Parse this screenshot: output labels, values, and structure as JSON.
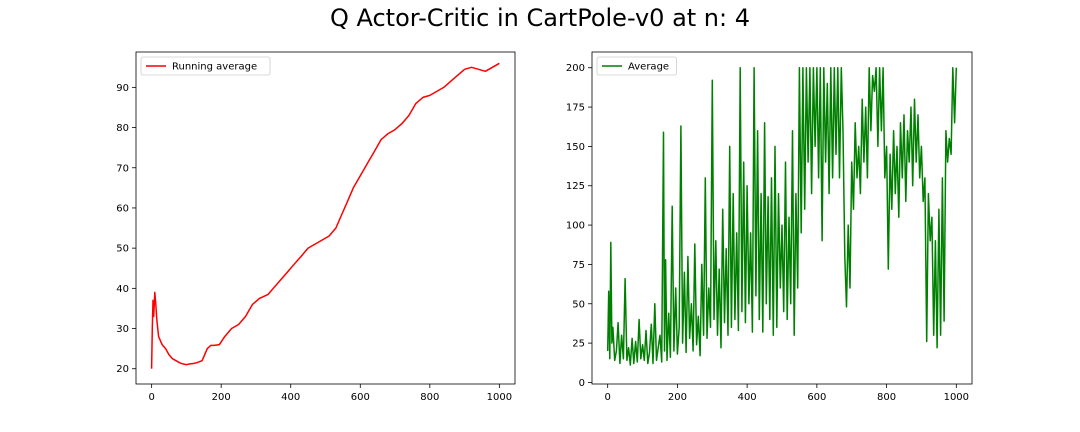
{
  "figure": {
    "title": "Q Actor-Critic in CartPole-v0 at n: 4"
  },
  "chart_data": [
    {
      "type": "line",
      "title": "",
      "xlabel": "",
      "ylabel": "",
      "xlim": [
        -45,
        1045
      ],
      "ylim": [
        16.2,
        98.8
      ],
      "xticks": [
        0,
        200,
        400,
        600,
        800,
        1000
      ],
      "yticks": [
        20,
        30,
        40,
        50,
        60,
        70,
        80,
        90
      ],
      "grid": false,
      "legend": "upper-left",
      "series": [
        {
          "name": "Running average",
          "color": "#ff0000",
          "points": [
            [
              0,
              20
            ],
            [
              2,
              30
            ],
            [
              4,
              37
            ],
            [
              6,
              33
            ],
            [
              9,
              39
            ],
            [
              12,
              36
            ],
            [
              15,
              32
            ],
            [
              20,
              28
            ],
            [
              30,
              26
            ],
            [
              40,
              25
            ],
            [
              50,
              23.5
            ],
            [
              60,
              22.5
            ],
            [
              70,
              22
            ],
            [
              80,
              21.5
            ],
            [
              90,
              21.2
            ],
            [
              100,
              21
            ],
            [
              110,
              21.2
            ],
            [
              120,
              21.3
            ],
            [
              130,
              21.5
            ],
            [
              145,
              22
            ],
            [
              160,
              25
            ],
            [
              170,
              25.8
            ],
            [
              180,
              25.8
            ],
            [
              195,
              26
            ],
            [
              210,
              28
            ],
            [
              230,
              30
            ],
            [
              250,
              31
            ],
            [
              270,
              33
            ],
            [
              290,
              36
            ],
            [
              310,
              37.5
            ],
            [
              335,
              38.5
            ],
            [
              350,
              40
            ],
            [
              370,
              42
            ],
            [
              390,
              44
            ],
            [
              410,
              46
            ],
            [
              430,
              48
            ],
            [
              450,
              50
            ],
            [
              470,
              51
            ],
            [
              490,
              52
            ],
            [
              510,
              53
            ],
            [
              530,
              55
            ],
            [
              545,
              58
            ],
            [
              560,
              61
            ],
            [
              580,
              65
            ],
            [
              600,
              68
            ],
            [
              620,
              71
            ],
            [
              640,
              74
            ],
            [
              660,
              77
            ],
            [
              680,
              78.5
            ],
            [
              700,
              79.5
            ],
            [
              720,
              81
            ],
            [
              740,
              83
            ],
            [
              760,
              86
            ],
            [
              780,
              87.5
            ],
            [
              800,
              88
            ],
            [
              820,
              89
            ],
            [
              840,
              90
            ],
            [
              860,
              91.5
            ],
            [
              880,
              93
            ],
            [
              900,
              94.5
            ],
            [
              920,
              95
            ],
            [
              940,
              94.5
            ],
            [
              960,
              94
            ],
            [
              980,
              95
            ],
            [
              1000,
              96
            ]
          ]
        }
      ]
    },
    {
      "type": "line",
      "title": "",
      "xlabel": "",
      "ylabel": "",
      "xlim": [
        -45,
        1045
      ],
      "ylim": [
        -1,
        210
      ],
      "xticks": [
        0,
        200,
        400,
        600,
        800,
        1000
      ],
      "yticks": [
        0,
        25,
        50,
        75,
        100,
        125,
        150,
        175,
        200
      ],
      "grid": false,
      "legend": "upper-left",
      "series": [
        {
          "name": "Average",
          "color": "#008000",
          "points": [
            [
              0,
              20
            ],
            [
              3,
              58
            ],
            [
              6,
              15
            ],
            [
              9,
              89
            ],
            [
              12,
              25
            ],
            [
              15,
              35
            ],
            [
              20,
              14
            ],
            [
              25,
              20
            ],
            [
              30,
              38
            ],
            [
              35,
              12
            ],
            [
              40,
              30
            ],
            [
              45,
              15
            ],
            [
              50,
              66
            ],
            [
              55,
              14
            ],
            [
              60,
              22
            ],
            [
              65,
              11
            ],
            [
              70,
              28
            ],
            [
              75,
              12
            ],
            [
              80,
              26
            ],
            [
              85,
              13
            ],
            [
              90,
              40
            ],
            [
              95,
              15
            ],
            [
              100,
              24
            ],
            [
              105,
              14
            ],
            [
              110,
              33
            ],
            [
              115,
              12
            ],
            [
              120,
              19
            ],
            [
              125,
              37
            ],
            [
              130,
              12
            ],
            [
              135,
              50
            ],
            [
              140,
              14
            ],
            [
              145,
              22
            ],
            [
              150,
              30
            ],
            [
              155,
              13
            ],
            [
              160,
              159
            ],
            [
              163,
              20
            ],
            [
              166,
              78
            ],
            [
              170,
              14
            ],
            [
              175,
              44
            ],
            [
              180,
              16
            ],
            [
              185,
              112
            ],
            [
              190,
              20
            ],
            [
              195,
              60
            ],
            [
              200,
              18
            ],
            [
              205,
              35
            ],
            [
              210,
              163
            ],
            [
              215,
              25
            ],
            [
              220,
              70
            ],
            [
              225,
              19
            ],
            [
              230,
              80
            ],
            [
              235,
              28
            ],
            [
              240,
              50
            ],
            [
              245,
              20
            ],
            [
              250,
              88
            ],
            [
              255,
              24
            ],
            [
              260,
              42
            ],
            [
              265,
              17
            ],
            [
              270,
              75
            ],
            [
              275,
              30
            ],
            [
              280,
              130
            ],
            [
              285,
              28
            ],
            [
              290,
              60
            ],
            [
              295,
              35
            ],
            [
              300,
              192
            ],
            [
              305,
              40
            ],
            [
              310,
              90
            ],
            [
              315,
              30
            ],
            [
              320,
              72
            ],
            [
              325,
              22
            ],
            [
              330,
              110
            ],
            [
              335,
              38
            ],
            [
              340,
              85
            ],
            [
              345,
              30
            ],
            [
              350,
              150
            ],
            [
              355,
              35
            ],
            [
              360,
              120
            ],
            [
              365,
              40
            ],
            [
              370,
              95
            ],
            [
              375,
              33
            ],
            [
              380,
              200
            ],
            [
              385,
              45
            ],
            [
              390,
              140
            ],
            [
              395,
              38
            ],
            [
              400,
              125
            ],
            [
              405,
              50
            ],
            [
              410,
              95
            ],
            [
              415,
              32
            ],
            [
              420,
              200
            ],
            [
              425,
              55
            ],
            [
              430,
              160
            ],
            [
              435,
              40
            ],
            [
              440,
              120
            ],
            [
              445,
              32
            ],
            [
              450,
              165
            ],
            [
              455,
              50
            ],
            [
              460,
              118
            ],
            [
              465,
              40
            ],
            [
              470,
              130
            ],
            [
              475,
              30
            ],
            [
              480,
              150
            ],
            [
              485,
              35
            ],
            [
              490,
              120
            ],
            [
              495,
              60
            ],
            [
              500,
              100
            ],
            [
              505,
              45
            ],
            [
              510,
              140
            ],
            [
              515,
              40
            ],
            [
              520,
              105
            ],
            [
              525,
              50
            ],
            [
              530,
              160
            ],
            [
              535,
              30
            ],
            [
              540,
              120
            ],
            [
              545,
              60
            ],
            [
              550,
              200
            ],
            [
              555,
              95
            ],
            [
              560,
              200
            ],
            [
              565,
              110
            ],
            [
              570,
              200
            ],
            [
              575,
              140
            ],
            [
              580,
              200
            ],
            [
              585,
              120
            ],
            [
              590,
              200
            ],
            [
              595,
              150
            ],
            [
              600,
              200
            ],
            [
              605,
              130
            ],
            [
              610,
              200
            ],
            [
              615,
              90
            ],
            [
              620,
              200
            ],
            [
              625,
              140
            ],
            [
              630,
              190
            ],
            [
              635,
              120
            ],
            [
              640,
              200
            ],
            [
              645,
              130
            ],
            [
              650,
              200
            ],
            [
              655,
              145
            ],
            [
              660,
              200
            ],
            [
              665,
              130
            ],
            [
              670,
              200
            ],
            [
              675,
              160
            ],
            [
              680,
              80
            ],
            [
              685,
              48
            ],
            [
              690,
              100
            ],
            [
              695,
              60
            ],
            [
              700,
              140
            ],
            [
              705,
              110
            ],
            [
              710,
              165
            ],
            [
              715,
              130
            ],
            [
              720,
              150
            ],
            [
              725,
              120
            ],
            [
              730,
              180
            ],
            [
              735,
              140
            ],
            [
              740,
              175
            ],
            [
              745,
              130
            ],
            [
              750,
              200
            ],
            [
              755,
              160
            ],
            [
              760,
              195
            ],
            [
              765,
              185
            ],
            [
              770,
              200
            ],
            [
              775,
              150
            ],
            [
              780,
              200
            ],
            [
              785,
              160
            ],
            [
              790,
              200
            ],
            [
              795,
              130
            ],
            [
              800,
              150
            ],
            [
              805,
              72
            ],
            [
              810,
              145
            ],
            [
              815,
              110
            ],
            [
              820,
              160
            ],
            [
              825,
              120
            ],
            [
              830,
              150
            ],
            [
              835,
              105
            ],
            [
              840,
              165
            ],
            [
              845,
              130
            ],
            [
              850,
              170
            ],
            [
              855,
              115
            ],
            [
              860,
              160
            ],
            [
              865,
              140
            ],
            [
              870,
              175
            ],
            [
              875,
              125
            ],
            [
              880,
              180
            ],
            [
              885,
              140
            ],
            [
              890,
              170
            ],
            [
              895,
              130
            ],
            [
              900,
              150
            ],
            [
              905,
              115
            ],
            [
              910,
              130
            ],
            [
              915,
              26
            ],
            [
              920,
              120
            ],
            [
              925,
              90
            ],
            [
              930,
              105
            ],
            [
              935,
              30
            ],
            [
              940,
              90
            ],
            [
              945,
              22
            ],
            [
              950,
              110
            ],
            [
              955,
              30
            ],
            [
              960,
              130
            ],
            [
              965,
              39
            ],
            [
              970,
              160
            ],
            [
              975,
              140
            ],
            [
              980,
              155
            ],
            [
              985,
              145
            ],
            [
              990,
              200
            ],
            [
              995,
              165
            ],
            [
              1000,
              200
            ]
          ]
        }
      ]
    }
  ]
}
